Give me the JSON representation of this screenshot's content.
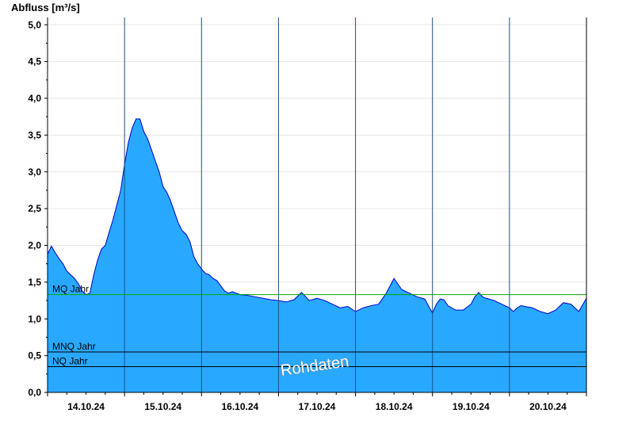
{
  "chart_data": {
    "type": "area",
    "title": "",
    "ylabel": "Abfluss [m³/s]",
    "xlabel": "",
    "ylim": [
      0,
      5.1
    ],
    "yticks": [
      "0,0",
      "0,5",
      "1,0",
      "1,5",
      "2,0",
      "2,5",
      "3,0",
      "3,5",
      "4,0",
      "4,5",
      "5,0"
    ],
    "ytick_values": [
      0,
      0.5,
      1,
      1.5,
      2,
      2.5,
      3,
      3.5,
      4,
      4.5,
      5
    ],
    "xlim": [
      0,
      7
    ],
    "xtick_labels": [
      "14.10.24",
      "15.10.24",
      "16.10.24",
      "17.10.24",
      "18.10.24",
      "19.10.24",
      "20.10.24"
    ],
    "day_boundaries": [
      1,
      2,
      3,
      4,
      5,
      6
    ],
    "grid": true,
    "fill_color": "#29a8ff",
    "line_color": "#0000cc",
    "series": [
      {
        "values_x": [
          0,
          0.05,
          0.1,
          0.15,
          0.2,
          0.25,
          0.3,
          0.35,
          0.4,
          0.45,
          0.5,
          0.55,
          0.6,
          0.65,
          0.7,
          0.75,
          0.8,
          0.85,
          0.9,
          0.95,
          1.0,
          1.05,
          1.1,
          1.15,
          1.2,
          1.25,
          1.3,
          1.35,
          1.4,
          1.45,
          1.5,
          1.55,
          1.6,
          1.65,
          1.7,
          1.75,
          1.8,
          1.85,
          1.9,
          1.95,
          2.0,
          2.05,
          2.1,
          2.15,
          2.2,
          2.25,
          2.3,
          2.35,
          2.4,
          2.45,
          2.5,
          2.6,
          2.7,
          2.8,
          2.9,
          3.0,
          3.1,
          3.2,
          3.3,
          3.4,
          3.5,
          3.6,
          3.7,
          3.8,
          3.9,
          4.0,
          4.1,
          4.2,
          4.3,
          4.4,
          4.5,
          4.6,
          4.7,
          4.8,
          4.9,
          5.0,
          5.05,
          5.1,
          5.15,
          5.2,
          5.3,
          5.4,
          5.5,
          5.55,
          5.6,
          5.65,
          5.7,
          5.8,
          5.9,
          6.0,
          6.05,
          6.1,
          6.15,
          6.2,
          6.3,
          6.4,
          6.5,
          6.6,
          6.7,
          6.8,
          6.9,
          7.0
        ],
        "values_y": [
          1.88,
          1.99,
          1.9,
          1.82,
          1.75,
          1.65,
          1.6,
          1.55,
          1.48,
          1.38,
          1.33,
          1.35,
          1.6,
          1.8,
          1.95,
          2.0,
          2.18,
          2.35,
          2.55,
          2.75,
          3.1,
          3.4,
          3.6,
          3.72,
          3.72,
          3.55,
          3.45,
          3.3,
          3.15,
          3.0,
          2.8,
          2.72,
          2.6,
          2.45,
          2.3,
          2.2,
          2.15,
          2.05,
          1.85,
          1.75,
          1.68,
          1.62,
          1.6,
          1.55,
          1.52,
          1.45,
          1.38,
          1.35,
          1.37,
          1.35,
          1.33,
          1.32,
          1.3,
          1.28,
          1.26,
          1.25,
          1.23,
          1.26,
          1.36,
          1.25,
          1.28,
          1.25,
          1.2,
          1.15,
          1.17,
          1.1,
          1.15,
          1.18,
          1.2,
          1.35,
          1.55,
          1.4,
          1.35,
          1.3,
          1.27,
          1.08,
          1.2,
          1.27,
          1.26,
          1.18,
          1.12,
          1.12,
          1.2,
          1.3,
          1.36,
          1.3,
          1.28,
          1.25,
          1.2,
          1.15,
          1.1,
          1.15,
          1.18,
          1.17,
          1.15,
          1.1,
          1.07,
          1.12,
          1.22,
          1.2,
          1.1,
          1.28
        ]
      }
    ],
    "reference_lines": [
      {
        "label": "MQ Jahr",
        "value": 1.33,
        "color": "#00aa00"
      },
      {
        "label": "MNQ Jahr",
        "value": 0.55,
        "color": "#000000"
      },
      {
        "label": "NQ Jahr",
        "value": 0.35,
        "color": "#000000"
      }
    ],
    "watermark": "Rohdaten"
  }
}
